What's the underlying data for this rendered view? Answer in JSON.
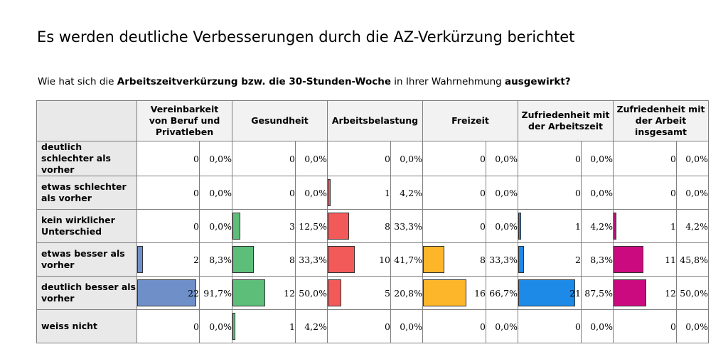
{
  "title": "Es werden deutliche Verbesserungen durch die AZ-Verkürzung berichtet",
  "question": {
    "p1": "Wie hat sich die ",
    "b1": "Arbeitszeitverkürzung bzw. die 30-Stunden-Woche",
    "p2": " in Ihrer Wahrnehmung ",
    "b2": "ausgewirkt?"
  },
  "chart_data": {
    "type": "table",
    "columns": [
      {
        "name": "Vereinbarkeit von Beruf und Privatleben",
        "color": "#6f8fc8",
        "counts": [
          0,
          0,
          0,
          2,
          22,
          0
        ],
        "percents": [
          "0,0%",
          "0,0%",
          "0,0%",
          "8,3%",
          "91,7%",
          "0,0%"
        ]
      },
      {
        "name": "Gesundheit",
        "color": "#5dbe7a",
        "counts": [
          0,
          0,
          3,
          8,
          12,
          1
        ],
        "percents": [
          "0,0%",
          "0,0%",
          "12,5%",
          "33,3%",
          "50,0%",
          "4,2%"
        ]
      },
      {
        "name": "Arbeitsbelastung",
        "color": "#f25a5a",
        "counts": [
          0,
          1,
          8,
          10,
          5,
          0
        ],
        "percents": [
          "0,0%",
          "4,2%",
          "33,3%",
          "41,7%",
          "20,8%",
          "0,0%"
        ]
      },
      {
        "name": "Freizeit",
        "color": "#fdb62a",
        "counts": [
          0,
          0,
          0,
          8,
          16,
          0
        ],
        "percents": [
          "0,0%",
          "0,0%",
          "0,0%",
          "33,3%",
          "66,7%",
          "0,0%"
        ]
      },
      {
        "name": "Zufriedenheit mit der Arbeitszeit",
        "color": "#1e8ae8",
        "counts": [
          0,
          0,
          1,
          2,
          21,
          0
        ],
        "percents": [
          "0,0%",
          "0,0%",
          "4,2%",
          "8,3%",
          "87,5%",
          "0,0%"
        ]
      },
      {
        "name": "Zufriedenheit mit der Arbeit insgesamt",
        "color": "#cc0a80",
        "counts": [
          0,
          0,
          1,
          11,
          12,
          0
        ],
        "percents": [
          "0,0%",
          "0,0%",
          "4,2%",
          "45,8%",
          "50,0%",
          "0,0%"
        ]
      }
    ],
    "rows": [
      "deutlich schlechter als vorher",
      "etwas schlechter als vorher",
      "kein wirklicher Unterschied",
      "etwas besser als vorher",
      "deutlich besser als vorher",
      "weiss nicht"
    ]
  }
}
